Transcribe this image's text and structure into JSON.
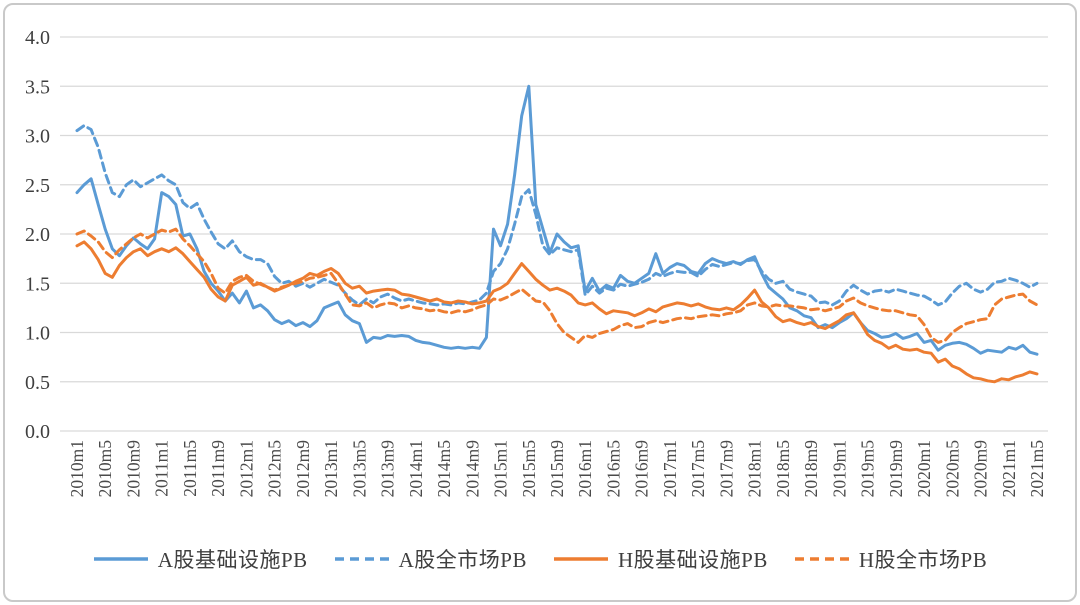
{
  "chart_data": {
    "type": "line",
    "title": "",
    "xlabel": "",
    "ylabel": "",
    "grid": true,
    "legend_position": "bottom",
    "colors": {
      "a_share_blue": "#5B9BD5",
      "h_share_orange": "#ED7D31",
      "gridline": "#D9D9D9",
      "tick_text": "#3F3F3F",
      "frame_border": "#C9C9C9"
    },
    "y_axis": {
      "min": 0,
      "max": 4,
      "step": 0.5,
      "tick_labels": [
        "4.0",
        "3.5",
        "3.0",
        "2.5",
        "2.0",
        "1.5",
        "1.0",
        "0.5",
        "0.0"
      ]
    },
    "x_axis": {
      "months_start": "2010m1",
      "months_end": "2021m5",
      "label_every_n_months": 4,
      "tick_labels": [
        "2010m1",
        "2010m5",
        "2010m9",
        "2011m1",
        "2011m5",
        "2011m9",
        "2012m1",
        "2012m5",
        "2012m9",
        "2013m1",
        "2013m5",
        "2013m9",
        "2014m1",
        "2014m5",
        "2014m9",
        "2015m1",
        "2015m5",
        "2015m9",
        "2016m1",
        "2016m5",
        "2016m9",
        "2017m1",
        "2017m5",
        "2017m9",
        "2018m1",
        "2018m5",
        "2018m9",
        "2019m1",
        "2019m5",
        "2019m9",
        "2020m1",
        "2020m5",
        "2020m9",
        "2021m1",
        "2021m5"
      ]
    },
    "series": [
      {
        "name": "A股基础设施PB",
        "color": "#5B9BD5",
        "dash": "solid",
        "values": [
          2.42,
          2.5,
          2.56,
          2.3,
          2.05,
          1.85,
          1.78,
          1.88,
          1.96,
          1.9,
          1.85,
          1.95,
          2.42,
          2.38,
          2.3,
          1.98,
          2.0,
          1.85,
          1.62,
          1.5,
          1.42,
          1.32,
          1.4,
          1.3,
          1.42,
          1.25,
          1.28,
          1.22,
          1.13,
          1.09,
          1.12,
          1.07,
          1.1,
          1.06,
          1.12,
          1.25,
          1.28,
          1.31,
          1.18,
          1.12,
          1.09,
          0.9,
          0.95,
          0.94,
          0.97,
          0.96,
          0.97,
          0.96,
          0.92,
          0.9,
          0.89,
          0.87,
          0.85,
          0.84,
          0.85,
          0.84,
          0.85,
          0.84,
          0.95,
          2.05,
          1.88,
          2.1,
          2.6,
          3.2,
          3.5,
          2.3,
          2.05,
          1.81,
          2.0,
          1.92,
          1.86,
          1.88,
          1.42,
          1.55,
          1.42,
          1.48,
          1.45,
          1.58,
          1.52,
          1.5,
          1.55,
          1.6,
          1.8,
          1.6,
          1.66,
          1.7,
          1.68,
          1.62,
          1.6,
          1.7,
          1.75,
          1.72,
          1.7,
          1.72,
          1.69,
          1.74,
          1.77,
          1.6,
          1.46,
          1.4,
          1.34,
          1.25,
          1.22,
          1.17,
          1.15,
          1.05,
          1.08,
          1.05,
          1.1,
          1.14,
          1.2,
          1.1,
          1.02,
          0.99,
          0.95,
          0.96,
          0.99,
          0.94,
          0.96,
          0.99,
          0.9,
          0.92,
          0.82,
          0.87,
          0.89,
          0.9,
          0.88,
          0.84,
          0.79,
          0.82,
          0.81,
          0.8,
          0.85,
          0.83,
          0.87,
          0.8,
          0.78
        ]
      },
      {
        "name": "A股全市场PB",
        "color": "#5B9BD5",
        "dash": "dashed",
        "values": [
          3.05,
          3.1,
          3.06,
          2.88,
          2.62,
          2.42,
          2.38,
          2.5,
          2.55,
          2.48,
          2.52,
          2.56,
          2.6,
          2.54,
          2.5,
          2.32,
          2.26,
          2.31,
          2.15,
          2.02,
          1.9,
          1.85,
          1.93,
          1.82,
          1.77,
          1.74,
          1.74,
          1.7,
          1.57,
          1.5,
          1.52,
          1.47,
          1.5,
          1.46,
          1.5,
          1.54,
          1.51,
          1.48,
          1.4,
          1.33,
          1.28,
          1.34,
          1.3,
          1.36,
          1.39,
          1.35,
          1.32,
          1.34,
          1.32,
          1.3,
          1.29,
          1.28,
          1.29,
          1.28,
          1.3,
          1.29,
          1.31,
          1.33,
          1.4,
          1.62,
          1.7,
          1.85,
          2.1,
          2.38,
          2.45,
          2.2,
          1.88,
          1.79,
          1.86,
          1.84,
          1.82,
          1.84,
          1.38,
          1.47,
          1.4,
          1.45,
          1.43,
          1.49,
          1.47,
          1.49,
          1.51,
          1.54,
          1.6,
          1.57,
          1.6,
          1.62,
          1.61,
          1.61,
          1.57,
          1.64,
          1.69,
          1.67,
          1.69,
          1.71,
          1.7,
          1.73,
          1.74,
          1.62,
          1.54,
          1.5,
          1.52,
          1.44,
          1.41,
          1.39,
          1.37,
          1.3,
          1.31,
          1.28,
          1.32,
          1.42,
          1.48,
          1.43,
          1.39,
          1.42,
          1.43,
          1.41,
          1.44,
          1.42,
          1.4,
          1.38,
          1.37,
          1.33,
          1.28,
          1.31,
          1.4,
          1.47,
          1.5,
          1.44,
          1.41,
          1.44,
          1.51,
          1.52,
          1.55,
          1.53,
          1.5,
          1.46,
          1.5
        ]
      },
      {
        "name": "H股基础设施PB",
        "color": "#ED7D31",
        "dash": "solid",
        "values": [
          1.88,
          1.92,
          1.85,
          1.74,
          1.6,
          1.56,
          1.68,
          1.76,
          1.82,
          1.85,
          1.78,
          1.82,
          1.85,
          1.82,
          1.86,
          1.8,
          1.72,
          1.64,
          1.56,
          1.44,
          1.36,
          1.32,
          1.48,
          1.52,
          1.56,
          1.48,
          1.5,
          1.46,
          1.42,
          1.45,
          1.48,
          1.52,
          1.55,
          1.6,
          1.58,
          1.62,
          1.65,
          1.6,
          1.5,
          1.45,
          1.47,
          1.4,
          1.42,
          1.43,
          1.44,
          1.43,
          1.39,
          1.38,
          1.36,
          1.34,
          1.32,
          1.34,
          1.31,
          1.3,
          1.32,
          1.31,
          1.29,
          1.3,
          1.32,
          1.42,
          1.45,
          1.5,
          1.6,
          1.7,
          1.62,
          1.54,
          1.48,
          1.43,
          1.45,
          1.42,
          1.38,
          1.3,
          1.28,
          1.3,
          1.24,
          1.19,
          1.22,
          1.21,
          1.2,
          1.17,
          1.2,
          1.24,
          1.21,
          1.26,
          1.28,
          1.3,
          1.29,
          1.27,
          1.29,
          1.26,
          1.24,
          1.23,
          1.25,
          1.23,
          1.28,
          1.35,
          1.43,
          1.31,
          1.25,
          1.16,
          1.11,
          1.13,
          1.1,
          1.08,
          1.1,
          1.06,
          1.04,
          1.08,
          1.12,
          1.18,
          1.2,
          1.1,
          0.98,
          0.92,
          0.89,
          0.84,
          0.87,
          0.83,
          0.82,
          0.83,
          0.8,
          0.79,
          0.7,
          0.73,
          0.66,
          0.63,
          0.58,
          0.54,
          0.53,
          0.51,
          0.5,
          0.53,
          0.52,
          0.55,
          0.57,
          0.6,
          0.58
        ]
      },
      {
        "name": "H股全市场PB",
        "color": "#ED7D31",
        "dash": "dashed",
        "values": [
          2.0,
          2.03,
          1.98,
          1.92,
          1.82,
          1.76,
          1.84,
          1.9,
          1.96,
          2.0,
          1.96,
          2.0,
          2.04,
          2.02,
          2.05,
          1.95,
          1.88,
          1.8,
          1.72,
          1.6,
          1.45,
          1.4,
          1.52,
          1.56,
          1.58,
          1.52,
          1.49,
          1.46,
          1.43,
          1.46,
          1.48,
          1.5,
          1.52,
          1.55,
          1.56,
          1.58,
          1.6,
          1.5,
          1.39,
          1.28,
          1.27,
          1.3,
          1.25,
          1.28,
          1.3,
          1.29,
          1.25,
          1.27,
          1.25,
          1.24,
          1.22,
          1.23,
          1.21,
          1.2,
          1.22,
          1.21,
          1.23,
          1.26,
          1.28,
          1.34,
          1.33,
          1.36,
          1.4,
          1.44,
          1.38,
          1.32,
          1.31,
          1.22,
          1.09,
          1.0,
          0.95,
          0.9,
          0.97,
          0.95,
          0.99,
          1.01,
          1.03,
          1.07,
          1.09,
          1.05,
          1.06,
          1.1,
          1.12,
          1.1,
          1.12,
          1.14,
          1.15,
          1.14,
          1.16,
          1.17,
          1.18,
          1.17,
          1.19,
          1.2,
          1.22,
          1.28,
          1.3,
          1.27,
          1.26,
          1.28,
          1.27,
          1.27,
          1.26,
          1.25,
          1.23,
          1.24,
          1.22,
          1.24,
          1.26,
          1.32,
          1.35,
          1.3,
          1.27,
          1.25,
          1.23,
          1.22,
          1.22,
          1.2,
          1.18,
          1.17,
          1.08,
          0.95,
          0.9,
          0.92,
          1.0,
          1.05,
          1.09,
          1.11,
          1.13,
          1.14,
          1.28,
          1.34,
          1.36,
          1.38,
          1.39,
          1.32,
          1.28
        ]
      }
    ],
    "legend": [
      "A股基础设施PB",
      "A股全市场PB",
      "H股基础设施PB",
      "H股全市场PB"
    ]
  }
}
